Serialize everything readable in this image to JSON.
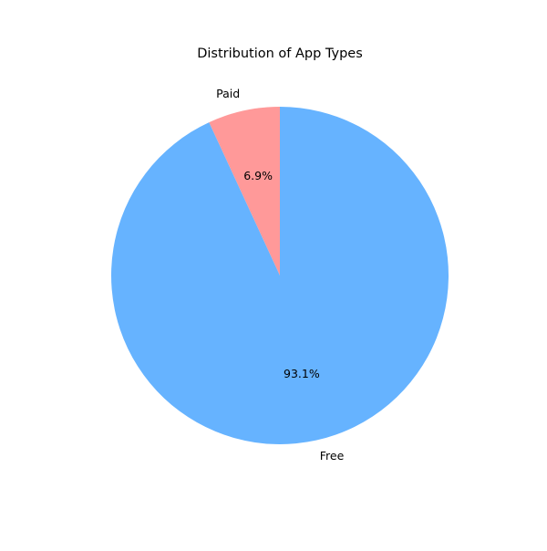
{
  "chart_data": {
    "type": "pie",
    "title": "Distribution of App Types",
    "slices": [
      {
        "label": "Paid",
        "value": 6.9,
        "pct_label": "6.9%",
        "color": "#ff9999"
      },
      {
        "label": "Free",
        "value": 93.1,
        "pct_label": "93.1%",
        "color": "#66b3ff"
      }
    ],
    "start_angle_deg": 90,
    "direction": "counterclockwise",
    "legend": "none"
  }
}
